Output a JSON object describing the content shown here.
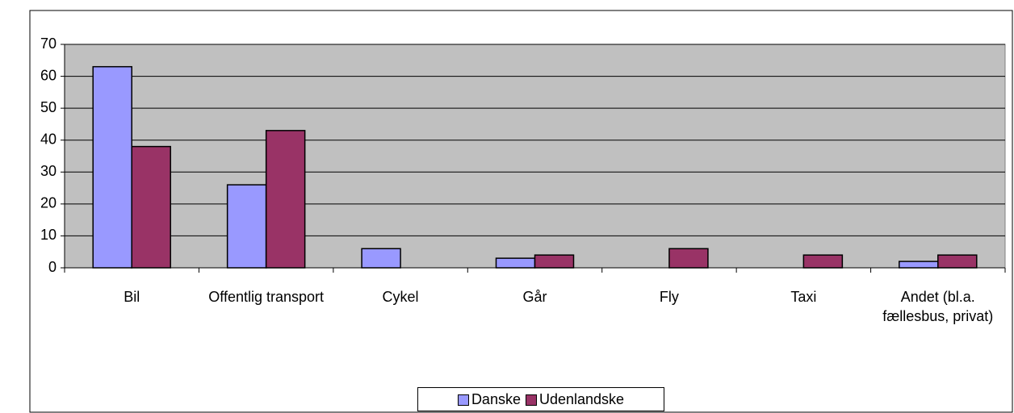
{
  "chart_data": {
    "type": "bar",
    "categories": [
      "Bil",
      "Offentlig transport",
      "Cykel",
      "Går",
      "Fly",
      "Taxi",
      "Andet (bl.a. fællesbus, privat)"
    ],
    "series": [
      {
        "name": "Danske",
        "color": "#9999ff",
        "values": [
          63,
          26,
          6,
          3,
          0,
          0,
          2
        ]
      },
      {
        "name": "Udenlandske",
        "color": "#993366",
        "values": [
          38,
          43,
          0,
          4,
          6,
          4,
          4
        ]
      }
    ],
    "ylim": [
      0,
      70
    ],
    "yticks": [
      0,
      10,
      20,
      30,
      40,
      50,
      60,
      70
    ],
    "grid": true,
    "legend": "bottom"
  }
}
